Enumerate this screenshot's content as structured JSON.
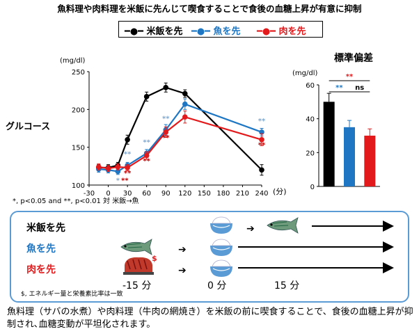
{
  "title": "魚料理や肉料理を米飯に先んじて喫食することで食後の血糖上昇が有意に抑制",
  "legend": {
    "items": [
      {
        "label": "米飯を先",
        "color": "#000000"
      },
      {
        "label": "魚を先",
        "color": "#1f77c4"
      },
      {
        "label": "肉を先",
        "color": "#e31a1c"
      }
    ]
  },
  "chart_data": [
    {
      "type": "line",
      "title": "",
      "ylabel": "グルコース",
      "yunit": "(mg/dl)",
      "xunit": "(分)",
      "xlim": [
        -30,
        240
      ],
      "ylim": [
        100,
        250
      ],
      "x_ticks": [
        -30,
        0,
        30,
        60,
        90,
        120,
        150,
        180,
        210,
        240
      ],
      "y_ticks": [
        100,
        150,
        200,
        250
      ],
      "x": [
        -15,
        0,
        15,
        30,
        60,
        90,
        120,
        240
      ],
      "series": [
        {
          "name": "米飯を先",
          "color": "#000000",
          "values": [
            123,
            123,
            126,
            160,
            217,
            229,
            221,
            120
          ],
          "errors": [
            4,
            4,
            4,
            6,
            6,
            6,
            5,
            7
          ]
        },
        {
          "name": "魚を先",
          "color": "#1f77c4",
          "values": [
            121,
            120,
            118,
            126,
            142,
            173,
            207,
            170
          ],
          "errors": [
            4,
            4,
            4,
            4,
            5,
            7,
            7,
            5
          ]
        },
        {
          "name": "肉を先",
          "color": "#e31a1c",
          "values": [
            124,
            122,
            124,
            123,
            139,
            170,
            190,
            160
          ],
          "errors": [
            4,
            4,
            4,
            4,
            5,
            7,
            8,
            8
          ]
        }
      ],
      "annotations": {
        "fish": [
          {
            "x": 15,
            "text": "*"
          },
          {
            "x": 30,
            "text": "**"
          },
          {
            "x": 60,
            "text": "**"
          },
          {
            "x": 90,
            "text": "**"
          },
          {
            "x": 240,
            "text": "**"
          }
        ],
        "meat": [
          {
            "x": 15,
            "text": "**"
          },
          {
            "x": 30,
            "text": "**"
          },
          {
            "x": 60,
            "text": "**"
          },
          {
            "x": 90,
            "text": "**"
          },
          {
            "x": 240,
            "text": "**"
          }
        ]
      },
      "footnote": "*, p<0.05 and **, p<0.01 対 米飯→魚"
    },
    {
      "type": "bar",
      "title": "標準偏差",
      "yunit": "(mg/dl)",
      "ylim": [
        0,
        60
      ],
      "y_ticks": [
        0,
        20,
        40,
        60
      ],
      "categories": [
        "米飯を先",
        "魚を先",
        "肉を先"
      ],
      "values": [
        50,
        35,
        30
      ],
      "errors": [
        5,
        4,
        4
      ],
      "colors": [
        "#000000",
        "#1f77c4",
        "#e31a1c"
      ],
      "significance": [
        {
          "pair": [
            0,
            2
          ],
          "text": "**",
          "color": "#e31a1c"
        },
        {
          "pair": [
            0,
            1
          ],
          "text": "**",
          "color": "#1f77c4"
        },
        {
          "pair": [
            1,
            2
          ],
          "text": "ns",
          "color": "#000000"
        }
      ]
    }
  ],
  "protocol": {
    "rows": [
      {
        "label": "米飯を先",
        "color": "#000000"
      },
      {
        "label": "魚を先",
        "color": "#1f77c4"
      },
      {
        "label": "肉を先",
        "color": "#e31a1c"
      }
    ],
    "dollar_mark": "$",
    "times": [
      "-15 分",
      "0 分",
      "15 分"
    ],
    "note": "$, エネルギー量と栄養素比率は一致"
  },
  "caption": "魚料理（サバの水煮）や肉料理（牛肉の網焼き）を米飯の前に喫食することで、食後の血糖上昇が抑制され､血糖変動が平坦化されます。"
}
